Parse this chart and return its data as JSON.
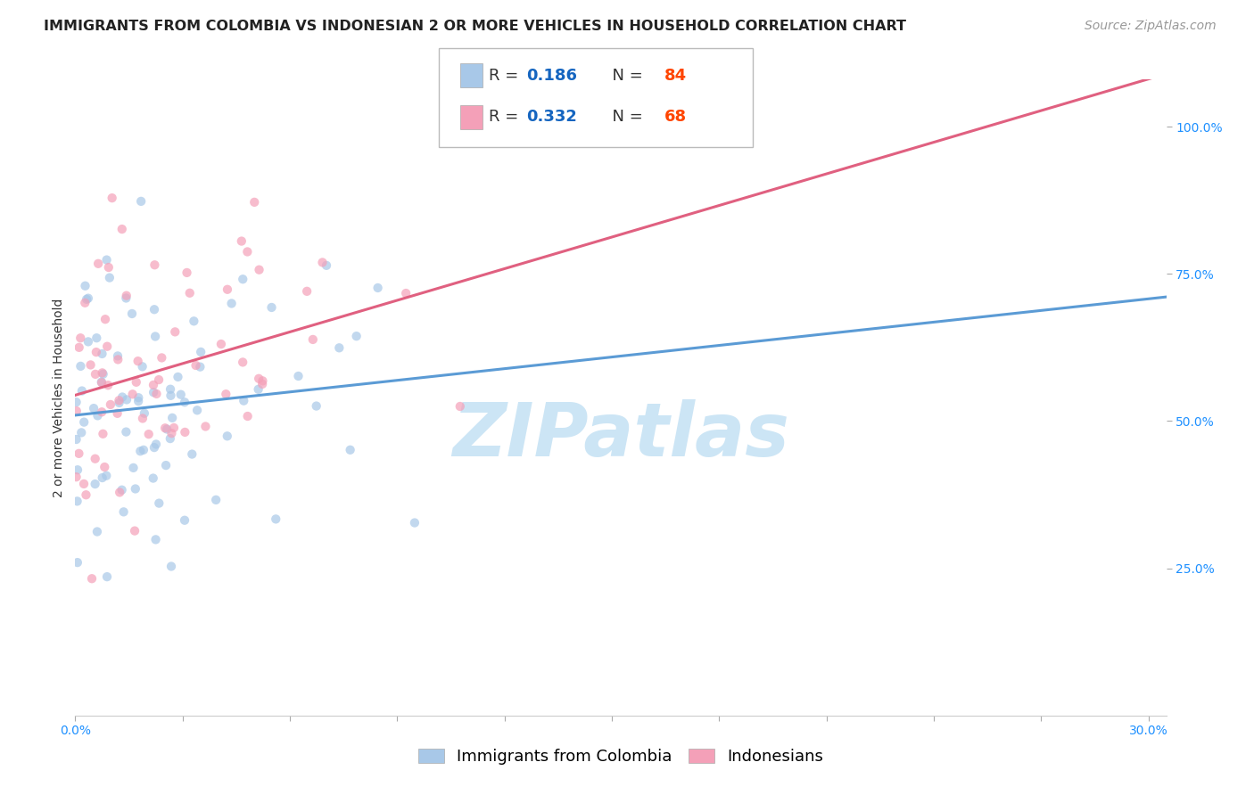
{
  "title": "IMMIGRANTS FROM COLOMBIA VS INDONESIAN 2 OR MORE VEHICLES IN HOUSEHOLD CORRELATION CHART",
  "source": "Source: ZipAtlas.com",
  "ylabel": "2 or more Vehicles in Household",
  "color_colombia": "#a8c8e8",
  "color_indonesia": "#f4a0b8",
  "color_trend_colombia": "#5b9bd5",
  "color_trend_indonesia": "#e06080",
  "color_r_value": "#1565C0",
  "color_n_value": "#FF4500",
  "scatter_alpha": 0.7,
  "scatter_size": 55,
  "watermark": "ZIPatlas",
  "watermark_color": "#cce5f5",
  "watermark_fontsize": 60,
  "grid_color": "#dddddd",
  "background_color": "#ffffff",
  "title_fontsize": 11.5,
  "source_fontsize": 10,
  "axis_label_fontsize": 10,
  "tick_fontsize": 10,
  "legend_fontsize": 13
}
